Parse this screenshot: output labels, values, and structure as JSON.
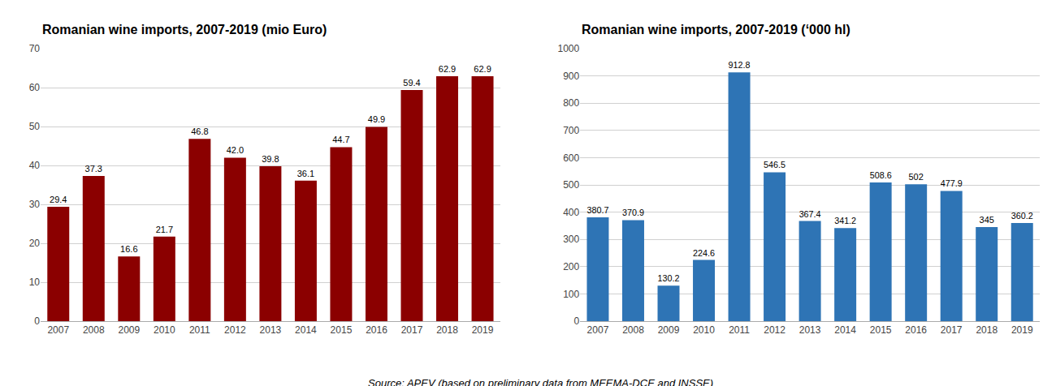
{
  "chart_data": [
    {
      "type": "bar",
      "title": "Romanian wine imports, 2007-2019 (mio Euro)",
      "categories": [
        "2007",
        "2008",
        "2009",
        "2010",
        "2011",
        "2012",
        "2013",
        "2014",
        "2015",
        "2016",
        "2017",
        "2018",
        "2019"
      ],
      "values": [
        29.4,
        37.3,
        16.6,
        21.7,
        46.8,
        42.0,
        39.8,
        36.1,
        44.7,
        49.9,
        59.4,
        62.9,
        62.9
      ],
      "value_labels": [
        "29.4",
        "37.3",
        "16.6",
        "21.7",
        "46.8",
        "42.0",
        "39.8",
        "36.1",
        "44.7",
        "49.9",
        "59.4",
        "62.9",
        "62.9"
      ],
      "color": "#8B0000",
      "ylim": [
        0,
        70
      ],
      "yticks": [
        0,
        10,
        20,
        30,
        40,
        50,
        60,
        70
      ],
      "grid": true,
      "data_labels": true
    },
    {
      "type": "bar",
      "title": "Romanian wine imports, 2007-2019 (‘000 hl)",
      "categories": [
        "2007",
        "2008",
        "2009",
        "2010",
        "2011",
        "2012",
        "2013",
        "2014",
        "2015",
        "2016",
        "2017",
        "2018",
        "2019"
      ],
      "values": [
        380.7,
        370.9,
        130.2,
        224.6,
        912.8,
        546.5,
        367.4,
        341.2,
        508.6,
        502.0,
        477.9,
        345.0,
        360.2
      ],
      "color": "#2E74B5",
      "ylim": [
        0,
        1000
      ],
      "yticks": [
        0,
        100,
        200,
        300,
        400,
        500,
        600,
        700,
        800,
        900,
        1000
      ],
      "grid": true,
      "data_labels": true
    }
  ],
  "annotations": [
    "Source: APEV (based on preliminary data from MEEMA-DCE and INSSE)"
  ]
}
